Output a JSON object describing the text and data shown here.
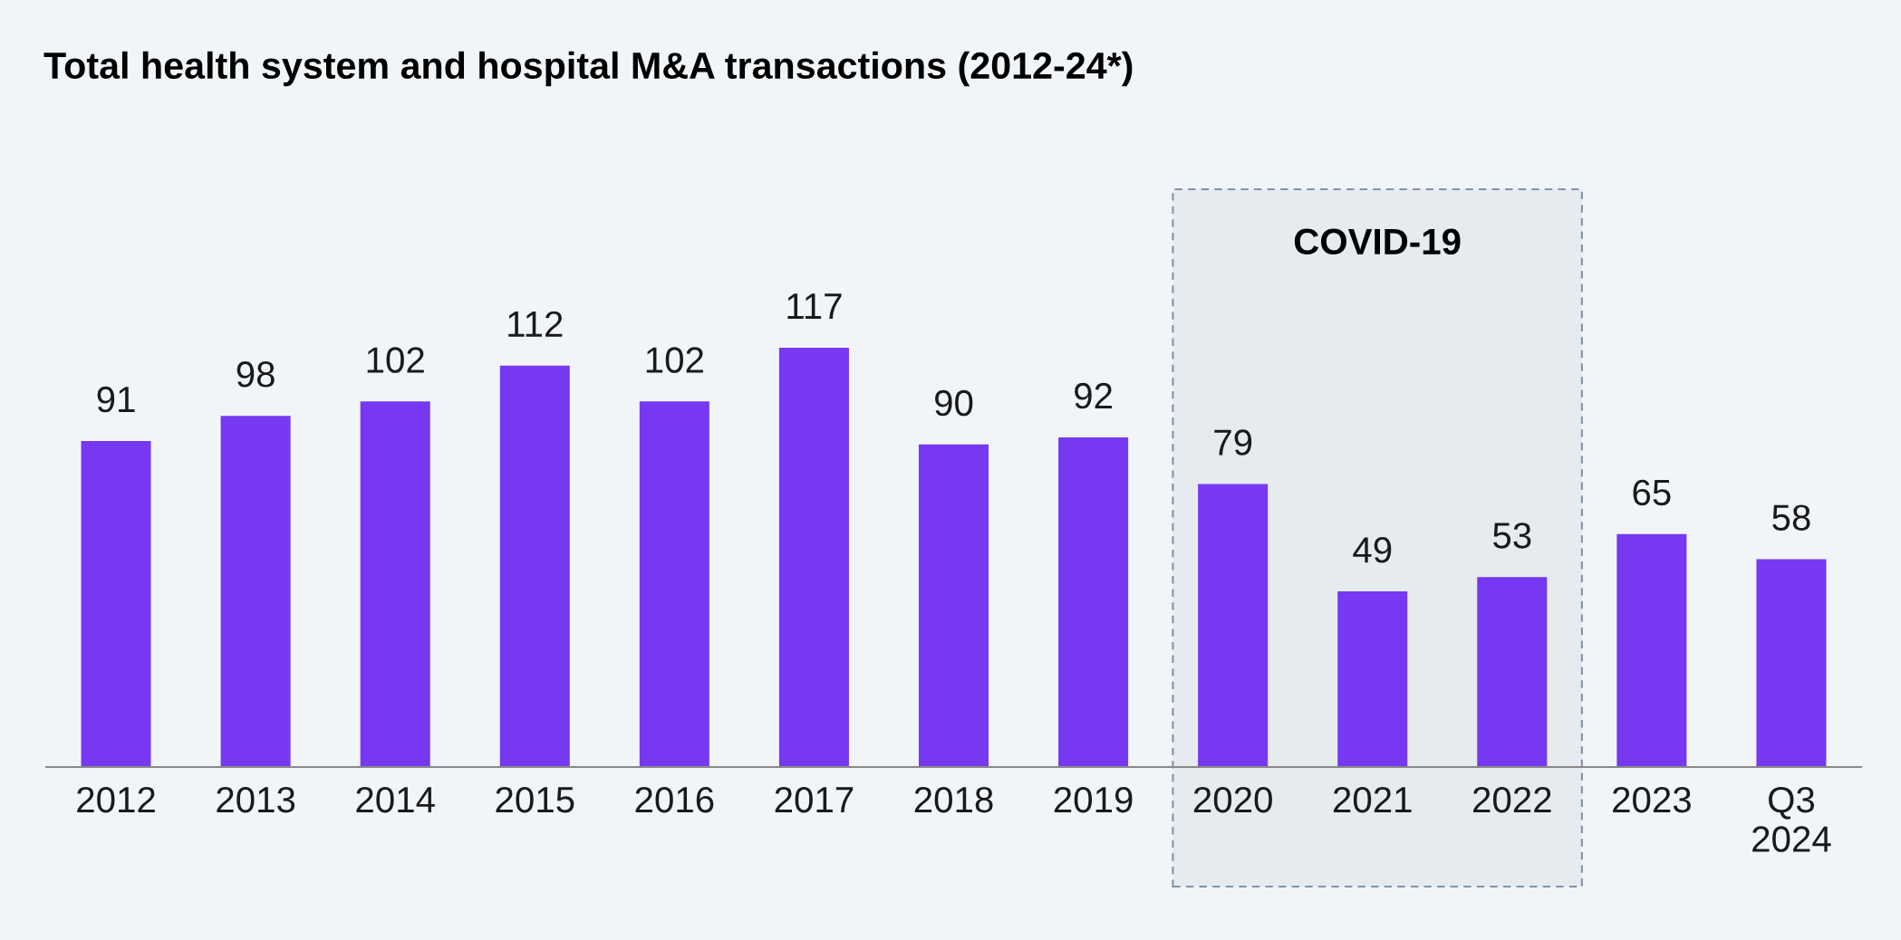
{
  "chart_data": {
    "type": "bar",
    "title": "Total health system and hospital M&A transactions (2012-24*)",
    "categories": [
      "2012",
      "2013",
      "2014",
      "2015",
      "2016",
      "2017",
      "2018",
      "2019",
      "2020",
      "2021",
      "2022",
      "2023",
      "Q3\n2024"
    ],
    "values": [
      91,
      98,
      102,
      112,
      102,
      117,
      90,
      92,
      79,
      49,
      53,
      65,
      58
    ],
    "color": "#7638f0",
    "data_labels": true,
    "bands": [
      {
        "axis": "x",
        "from": "2020",
        "to": "2022",
        "label": "COVID-19",
        "color": "#7f93a8"
      }
    ],
    "grid": false,
    "legend": false
  }
}
